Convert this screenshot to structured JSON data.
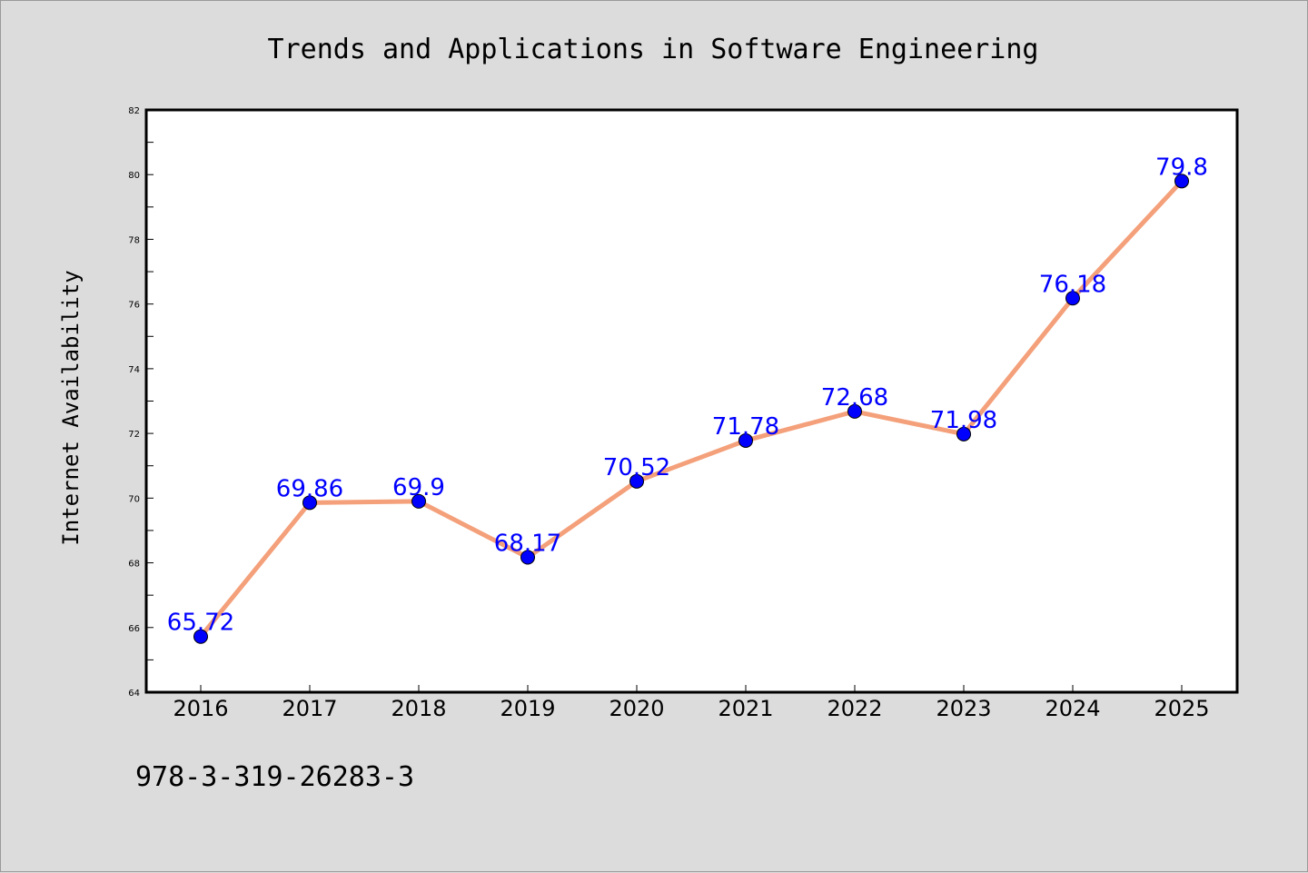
{
  "chart_data": {
    "type": "line",
    "title": "Trends and Applications in Software Engineering",
    "xlabel": "",
    "ylabel": "Internet Availability",
    "categories": [
      "2016",
      "2017",
      "2018",
      "2019",
      "2020",
      "2021",
      "2022",
      "2023",
      "2024",
      "2025"
    ],
    "series": [
      {
        "values": [
          65.72,
          69.86,
          69.9,
          68.17,
          70.52,
          71.78,
          72.68,
          71.98,
          76.18,
          79.8
        ],
        "line_color": "#f4a07a",
        "marker_color": "#0000ff"
      }
    ],
    "data_labels": [
      "65.72",
      "69.86",
      "69.9",
      "68.17",
      "70.52",
      "71.78",
      "72.68",
      "71.98",
      "76.18",
      "79.8"
    ],
    "ylim": [
      64,
      82
    ],
    "yticks": [
      64,
      66,
      68,
      70,
      72,
      74,
      76,
      78,
      80,
      82
    ],
    "grid": false,
    "legend": "none",
    "label_color": "#0000ff",
    "background": "#dcdcdc",
    "plot_background": "#ffffff"
  },
  "footer": {
    "isbn": "978-3-319-26283-3"
  }
}
